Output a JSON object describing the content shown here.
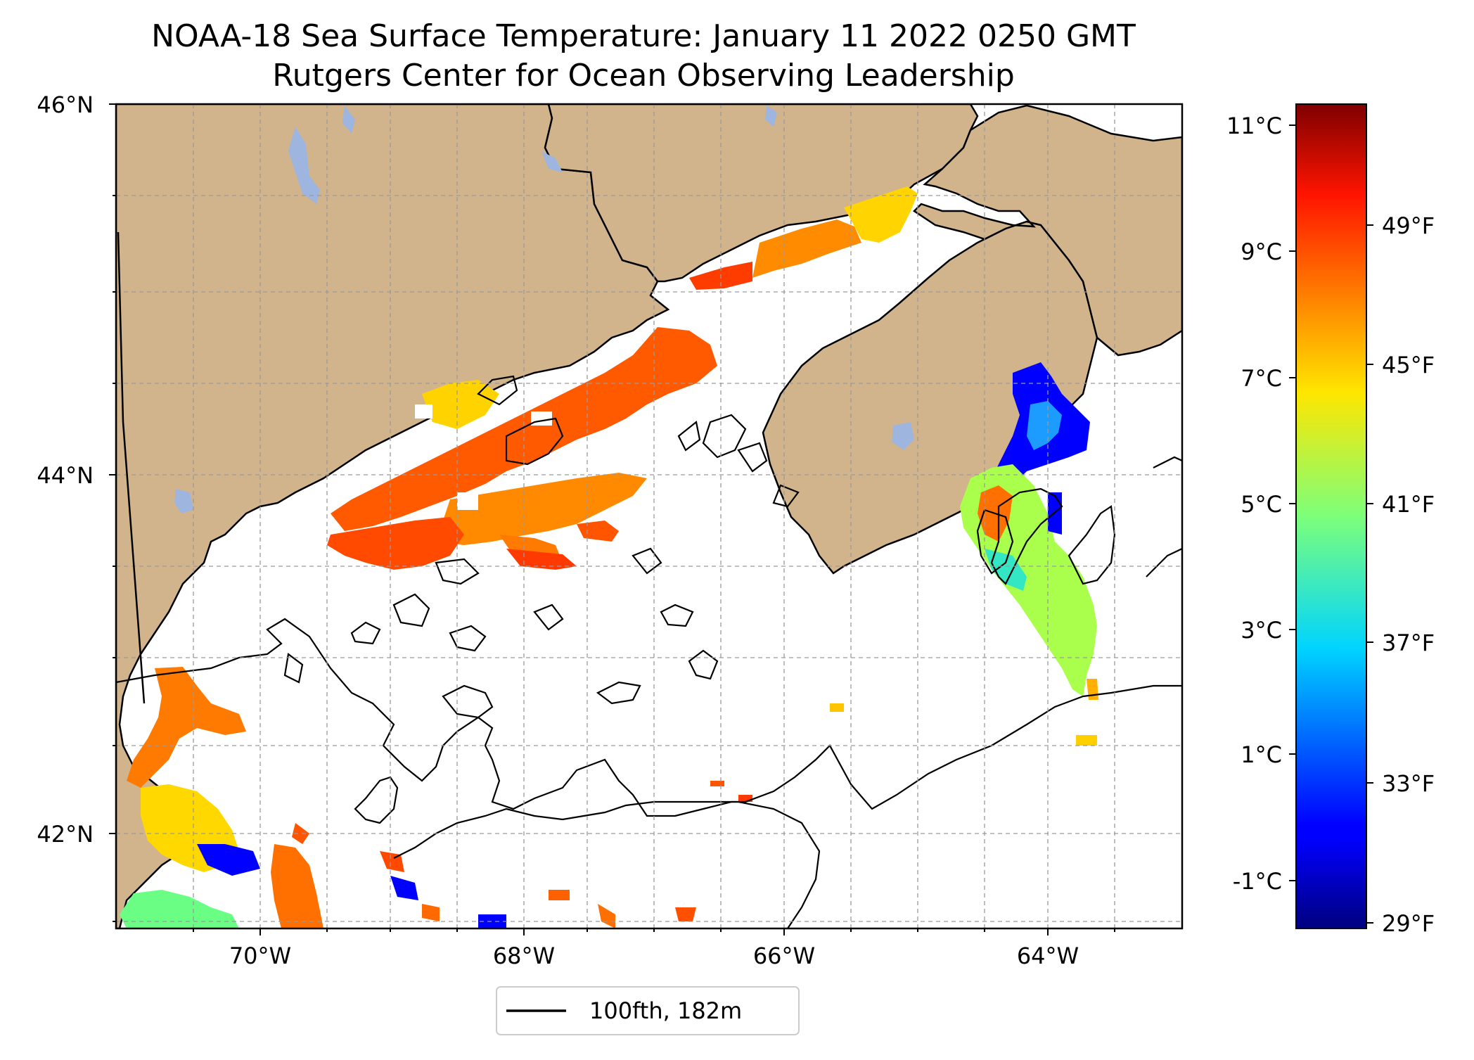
{
  "title": {
    "line1": "NOAA-18 Sea Surface Temperature: January 11 2022 0250 GMT",
    "line2": "Rutgers Center for Ocean Observing Leadership"
  },
  "map": {
    "lon_range": [
      -71.1,
      -63.0
    ],
    "lat_range": [
      41.5,
      46.0
    ],
    "lat_labels": [
      "46°N",
      "44°N",
      "42°N"
    ],
    "lon_labels": [
      "70°W",
      "68°W",
      "66°W",
      "64°W"
    ],
    "grid": "dashed",
    "colors": {
      "land": "#d2b48c",
      "lakes": "#9db5df",
      "ocean_no_data": "#ffffff",
      "contour": "#000000"
    }
  },
  "legend": {
    "label": "100fth, 182m",
    "placement": "below-center"
  },
  "colorbar": {
    "colormap": "jet",
    "celsius_labels": [
      "11°C",
      "9°C",
      "7°C",
      "5°C",
      "3°C",
      "1°C",
      "-1°C"
    ],
    "fahrenheit_labels": [
      "49°F",
      "45°F",
      "41°F",
      "37°F",
      "33°F",
      "29°F"
    ]
  }
}
